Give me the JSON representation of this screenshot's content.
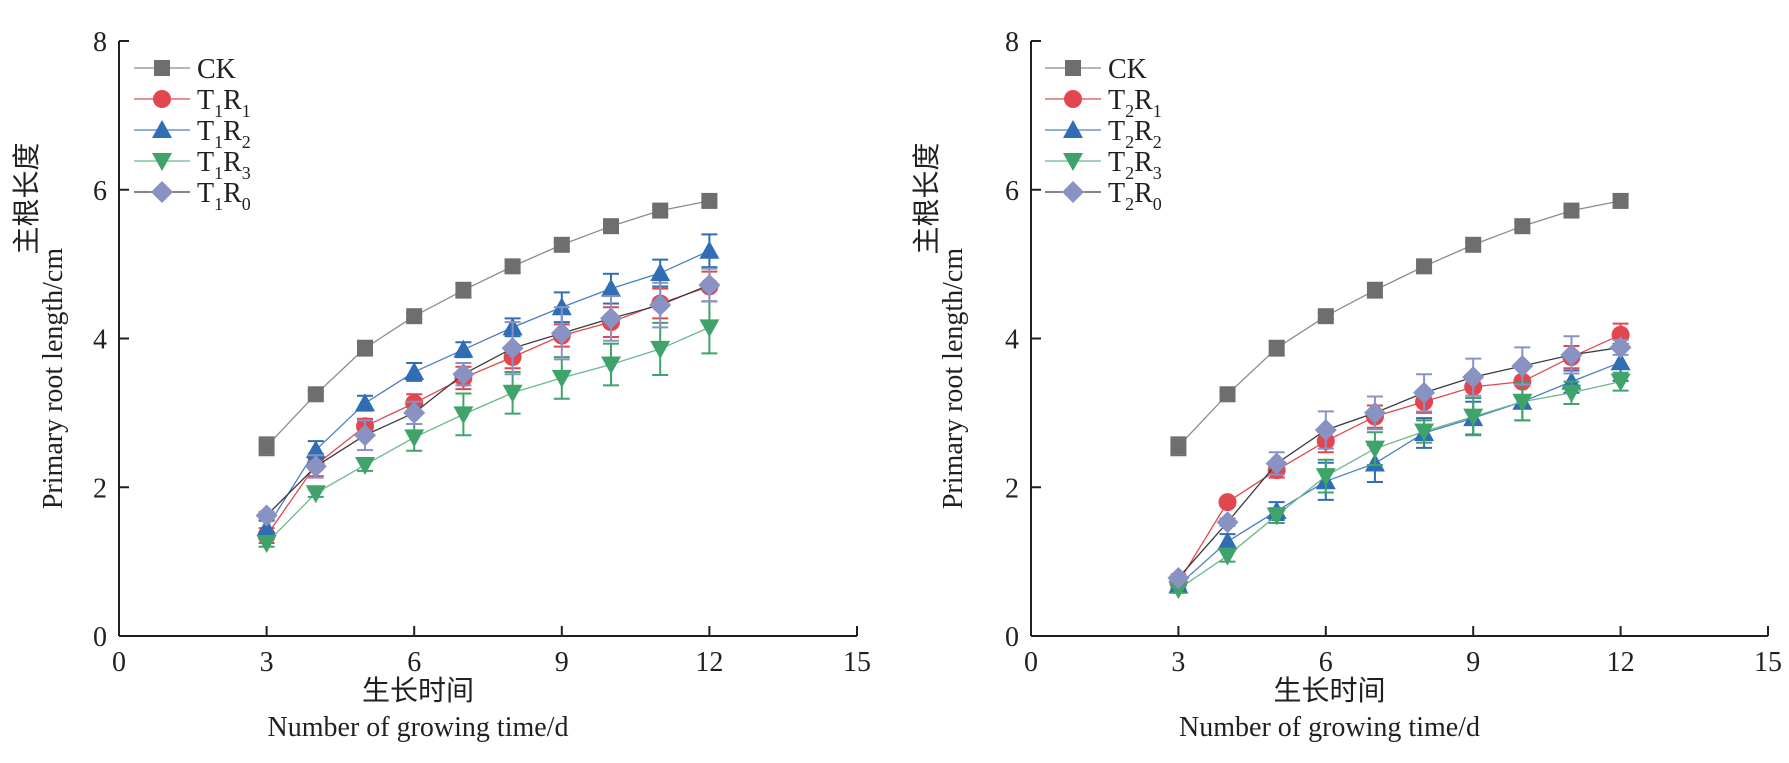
{
  "chart_data": [
    {
      "type": "line",
      "panel": "left",
      "title": "",
      "xlabel_cn": "生长时间",
      "xlabel": "Number of growing time/d",
      "ylabel_cn": "主根长度",
      "ylabel": "Primary root length/cm",
      "xlim": [
        0,
        15
      ],
      "ylim": [
        0,
        8
      ],
      "xticks": [
        0,
        3,
        6,
        9,
        12,
        15
      ],
      "yticks": [
        0,
        2,
        4,
        6,
        8
      ],
      "grid": false,
      "legend_position": "top-left",
      "x": [
        3,
        4,
        5,
        6,
        7,
        8,
        9,
        10,
        11,
        12
      ],
      "series": [
        {
          "name": "CK",
          "label_parts": [
            "CK"
          ],
          "color": "#6d6e70",
          "line_color": "#8c8c8c",
          "marker": "square",
          "values": [
            2.55,
            3.25,
            3.87,
            4.3,
            4.65,
            4.97,
            5.26,
            5.51,
            5.72,
            5.85
          ],
          "errors": [
            0.12,
            0.04,
            0.1,
            0.04,
            0.1,
            0.08,
            0.04,
            0.04,
            0.05,
            0.08
          ]
        },
        {
          "name": "T1R1",
          "label_parts": [
            "T",
            "1",
            "R",
            "1"
          ],
          "color": "#e2474f",
          "line_color": "#e2474f",
          "marker": "circle",
          "values": [
            1.35,
            2.3,
            2.82,
            3.13,
            3.47,
            3.75,
            4.04,
            4.22,
            4.47,
            4.7
          ],
          "errors": [
            0.1,
            0.15,
            0.1,
            0.12,
            0.15,
            0.15,
            0.15,
            0.2,
            0.2,
            0.2
          ]
        },
        {
          "name": "T1R2",
          "label_parts": [
            "T",
            "1",
            "R",
            "2"
          ],
          "color": "#2f6db5",
          "line_color": "#4a7fc1",
          "marker": "triangle-up",
          "values": [
            1.45,
            2.5,
            3.13,
            3.55,
            3.85,
            4.15,
            4.42,
            4.67,
            4.88,
            5.18
          ],
          "errors": [
            0.1,
            0.12,
            0.1,
            0.12,
            0.1,
            0.12,
            0.2,
            0.2,
            0.18,
            0.22
          ]
        },
        {
          "name": "T1R3",
          "label_parts": [
            "T",
            "1",
            "R",
            "3"
          ],
          "color": "#3fa36a",
          "line_color": "#6cb98a",
          "marker": "triangle-down",
          "values": [
            1.25,
            1.92,
            2.3,
            2.67,
            2.98,
            3.27,
            3.47,
            3.65,
            3.86,
            4.15
          ],
          "errors": [
            0.05,
            0.05,
            0.08,
            0.18,
            0.28,
            0.28,
            0.28,
            0.28,
            0.35,
            0.35
          ]
        },
        {
          "name": "T1R0",
          "label_parts": [
            "T",
            "1",
            "R",
            "0"
          ],
          "color": "#8892c3",
          "line_color": "#3a3a3a",
          "marker": "diamond",
          "values": [
            1.62,
            2.28,
            2.7,
            3.0,
            3.52,
            3.87,
            4.07,
            4.27,
            4.45,
            4.72
          ],
          "errors": [
            0.05,
            0.15,
            0.2,
            0.15,
            0.15,
            0.35,
            0.35,
            0.3,
            0.3,
            0.22
          ]
        }
      ]
    },
    {
      "type": "line",
      "panel": "right",
      "title": "",
      "xlabel_cn": "生长时间",
      "xlabel": "Number of growing time/d",
      "ylabel_cn": "主根长度",
      "ylabel": "Primary root length/cm",
      "xlim": [
        0,
        15
      ],
      "ylim": [
        0,
        8
      ],
      "xticks": [
        0,
        3,
        6,
        9,
        12,
        15
      ],
      "yticks": [
        0,
        2,
        4,
        6,
        8
      ],
      "grid": false,
      "legend_position": "top-left",
      "x": [
        3,
        4,
        5,
        6,
        7,
        8,
        9,
        10,
        11,
        12
      ],
      "series": [
        {
          "name": "CK",
          "label_parts": [
            "CK"
          ],
          "color": "#6d6e70",
          "line_color": "#8c8c8c",
          "marker": "square",
          "values": [
            2.55,
            3.25,
            3.87,
            4.3,
            4.65,
            4.97,
            5.26,
            5.51,
            5.72,
            5.85
          ],
          "errors": [
            0.12,
            0.04,
            0.1,
            0.04,
            0.1,
            0.08,
            0.04,
            0.04,
            0.05,
            0.08
          ]
        },
        {
          "name": "T2R1",
          "label_parts": [
            "T",
            "2",
            "R",
            "1"
          ],
          "color": "#e2474f",
          "line_color": "#e2474f",
          "marker": "circle",
          "values": [
            0.72,
            1.8,
            2.23,
            2.62,
            2.95,
            3.15,
            3.35,
            3.42,
            3.75,
            4.05
          ],
          "errors": [
            0.05,
            0.05,
            0.1,
            0.15,
            0.15,
            0.15,
            0.15,
            0.05,
            0.15,
            0.15
          ]
        },
        {
          "name": "T2R2",
          "label_parts": [
            "T",
            "2",
            "R",
            "2"
          ],
          "color": "#2f6db5",
          "line_color": "#4a7fc1",
          "marker": "triangle-up",
          "values": [
            0.68,
            1.27,
            1.68,
            2.08,
            2.32,
            2.73,
            2.93,
            3.15,
            3.42,
            3.68
          ],
          "errors": [
            0.05,
            0.1,
            0.12,
            0.25,
            0.25,
            0.2,
            0.22,
            0.25,
            0.15,
            0.25
          ]
        },
        {
          "name": "T2R3",
          "label_parts": [
            "T",
            "2",
            "R",
            "3"
          ],
          "color": "#3fa36a",
          "line_color": "#6cb98a",
          "marker": "triangle-down",
          "values": [
            0.63,
            1.08,
            1.62,
            2.15,
            2.52,
            2.75,
            2.95,
            3.15,
            3.27,
            3.42
          ],
          "errors": [
            0.05,
            0.08,
            0.1,
            0.22,
            0.22,
            0.15,
            0.25,
            0.25,
            0.15,
            0.12
          ]
        },
        {
          "name": "T2R0",
          "label_parts": [
            "T",
            "2",
            "R",
            "0"
          ],
          "color": "#8892c3",
          "line_color": "#3a3a3a",
          "marker": "diamond",
          "values": [
            0.78,
            1.53,
            2.32,
            2.77,
            3.0,
            3.27,
            3.48,
            3.63,
            3.78,
            3.88
          ],
          "errors": [
            0.05,
            0.05,
            0.15,
            0.25,
            0.22,
            0.25,
            0.25,
            0.25,
            0.25,
            0.1
          ]
        }
      ]
    }
  ]
}
